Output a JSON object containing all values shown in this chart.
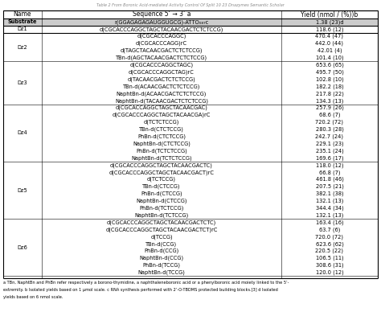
{
  "col_headers": [
    "Name",
    "Sequence 5’ → 3’ a",
    "Yield (nmol / (%))b"
  ],
  "rows": [
    {
      "name": "Substrate",
      "seq": "r(GGAGAGAGAUGGUGCG)-ATTO₀₈₇c",
      "yield": "1.38 (23)d",
      "bold": true,
      "lines": 1
    },
    {
      "name": "Dz1",
      "seq": "d(CGCACCCAGGCTAGCTACAACGACTCTCTCCG)",
      "yield": "118.6 (12)",
      "bold": false,
      "lines": 1
    },
    {
      "name": "Dz2",
      "seq": "d(CGCACCCAGGC)\nd(CGCACCCAGG)rC\nd(TAGCTACAACGACTCTCTCCG)\nTBn-d(AGCTACAACGACTCTCTCCG)",
      "yield": "470.4 (47)\n442.0 (44)\n42.01 (4)\n101.4 (10)",
      "bold": false,
      "lines": 4
    },
    {
      "name": "Dz3",
      "seq": "d(CGCACCCAGGCTAGC)\nd(CGCACCCAGGCTAG)rC\nd(TACAACGACTCTCTCCG)\nTBn-d(ACAACGACTCTCTCCG)\nNaphtBn-d(ACAACGACTCTCTCCG)\nNaphtBn-d(TACAACGACTCTCTCCG)",
      "yield": "653.6 (65)\n495.7 (50)\n102.8 (10)\n182.2 (18)\n217.8 (22)\n134.3 (13)",
      "bold": false,
      "lines": 6
    },
    {
      "name": "Dz4",
      "seq": "d(CGCACCAGGCTAGCTACAACGAC)\nd(CGCACCCAGGCTAGCTACAACGA)rC\nd(TCTCTCCG)\nTBn-d(CTCTCCG)\nPhBn-d(CTCTCCG)\nNaphtBn-d(CTCTCCG)\nPhBn-d(TCTCTCCG)\nNaphtBn-d(TCTCTCCG)",
      "yield": "257.9 (26)\n68.6 (7)\n720.2 (72)\n280.3 (28)\n242.7 (24)\n229.1 (23)\n235.1 (24)\n169.6 (17)",
      "bold": false,
      "lines": 8
    },
    {
      "name": "Dz5",
      "seq": "d(CGCACCCAGGCTAGCTACAACGACTC)\nd(CGCACCCAGGCTAGCTACAACGACT)rC\nd(TCTCCG)\nTBn-d(CTCCG)\nPhBn-d(CTCCG)\nNaphtBn-d(CTCCG)\nPhBn-d(TCTCCG)\nNaphtBn-d(TCTCCG)",
      "yield": "118.0 (12)\n66.8 (7)\n461.8 (46)\n207.5 (21)\n382.1 (38)\n132.1 (13)\n344.4 (34)\n132.1 (13)",
      "bold": false,
      "lines": 8
    },
    {
      "name": "Dz6",
      "seq": "d(CGCACCCAGGCTAGCTACAACGACTCTC)\nd(CGCACCCAGGCTAGCTACAACGACTCT)rC\nd(TCCG)\nTBn-d(CCG)\nPhBn-d(CCG)\nNaphtBn-d(CCG)\nPhBn-d(TCCG)\nNaphtBn-d(TCCG)",
      "yield": "163.4 (16)\n63.7 (6)\n720.0 (72)\n623.6 (62)\n220.5 (22)\n106.5 (11)\n308.6 (31)\n120.0 (12)",
      "bold": false,
      "lines": 8
    }
  ],
  "title_line": "Table 2 From Boronic Acid-mediated Activity Control Of Split 10 23 Dnazymes",
  "footnote_lines": [
    "a TBn, NaphtBn and PhBn refer respectively a borono-thymidine, a naphthaleneboronic acid or a phenylboronic acid moiety linked to the 5’-",
    "extremity. b Isolated yields based on 1 μmol scale. c RNA synthesis performed with 2’-O-TBDMS protected building blocks.[3] d Isolated",
    "yields based on 6 nmol scale."
  ],
  "bg_color": "#f5f5f5",
  "header_bg": "#ffffff",
  "substrate_bg": "#d0d0d0"
}
